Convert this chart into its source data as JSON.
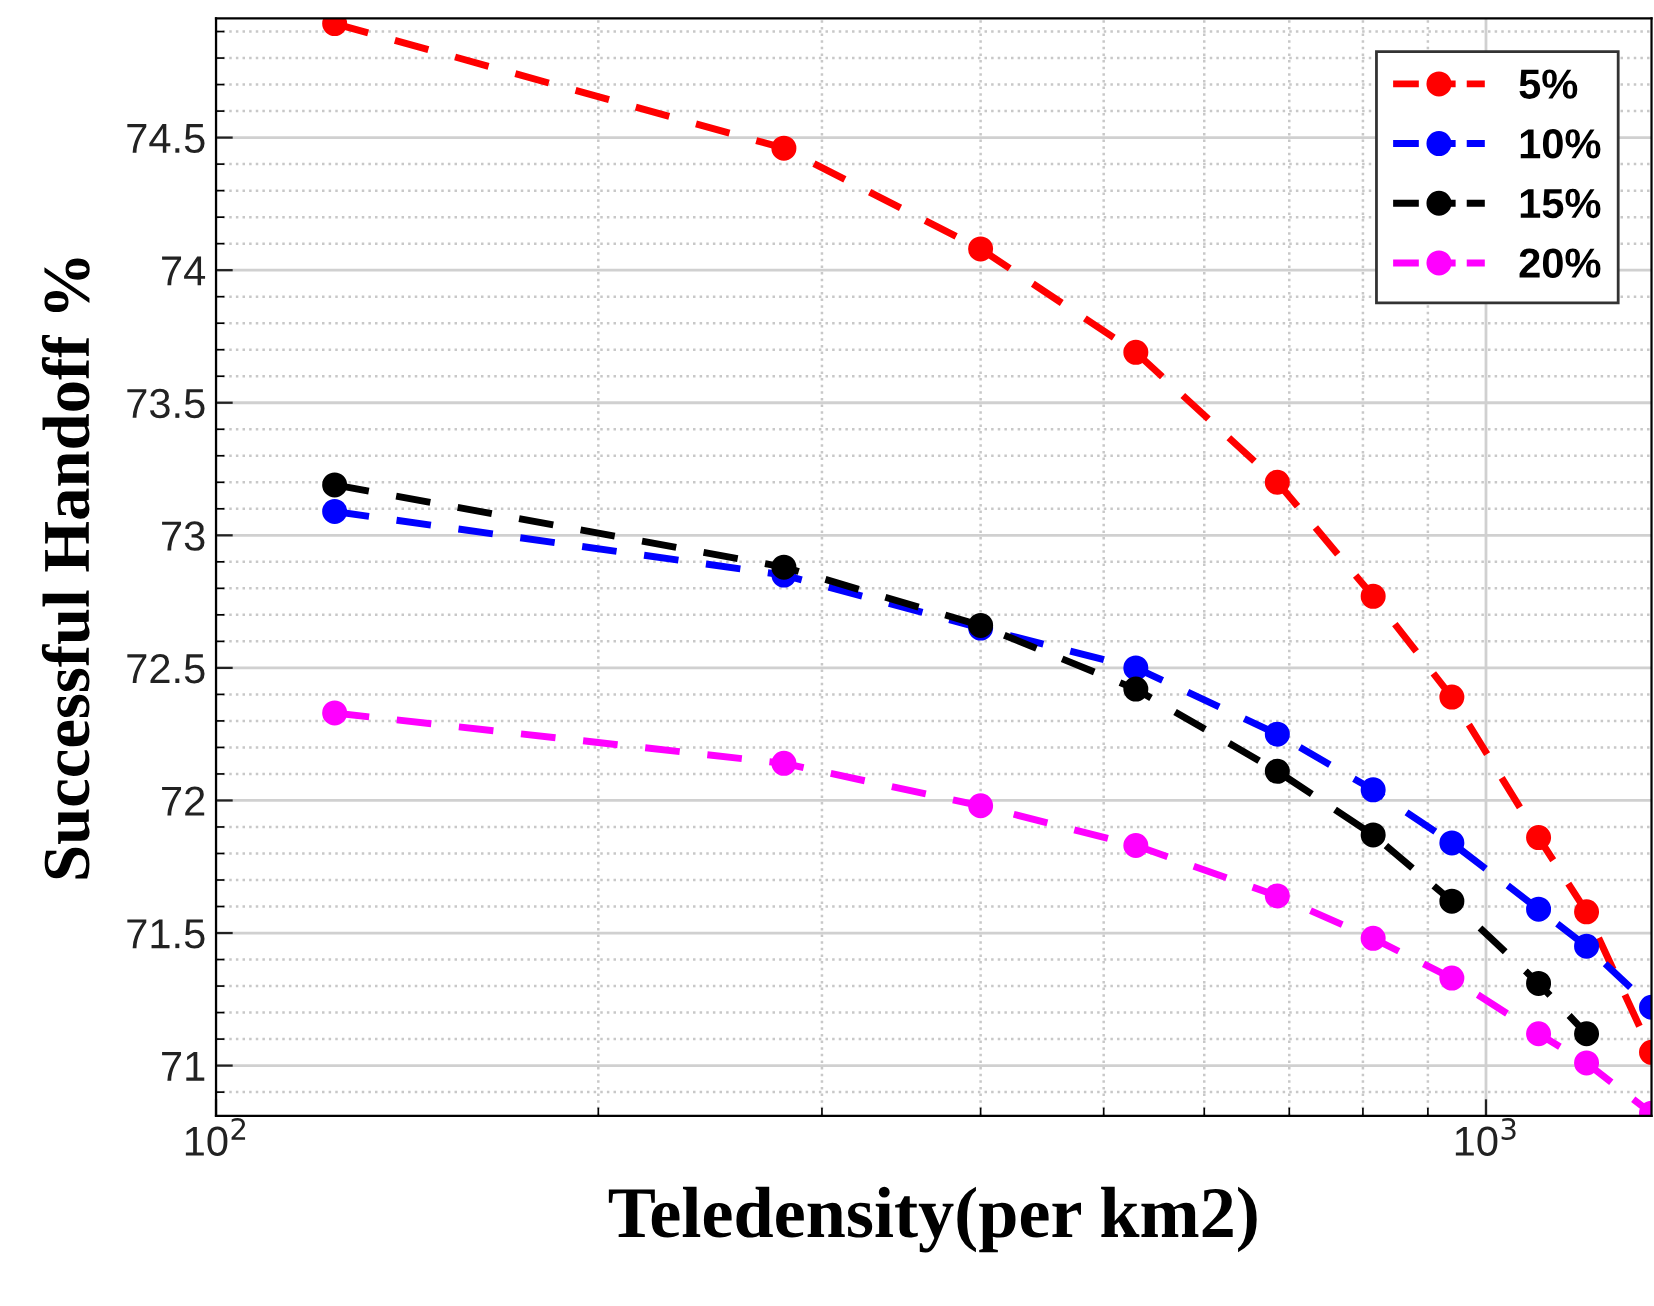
{
  "chart_data": {
    "type": "line",
    "xlabel": "Teledensity(per km2)",
    "ylabel": "Successful Handoff %",
    "x": [
      124,
      280,
      400,
      530,
      685,
      815,
      940,
      1100,
      1200,
      1350
    ],
    "series": [
      {
        "name": "5%",
        "color": "#ff0000",
        "values": [
          74.93,
          74.46,
          74.08,
          73.69,
          73.2,
          72.77,
          72.39,
          71.86,
          71.58,
          71.05
        ]
      },
      {
        "name": "10%",
        "color": "#0000ff",
        "values": [
          73.09,
          72.85,
          72.65,
          72.5,
          72.25,
          72.04,
          71.84,
          71.59,
          71.45,
          71.22
        ]
      },
      {
        "name": "15%",
        "color": "#000000",
        "values": [
          73.19,
          72.88,
          72.66,
          72.42,
          72.11,
          71.87,
          71.62,
          71.31,
          71.12,
          null
        ]
      },
      {
        "name": "20%",
        "color": "#ff00ff",
        "values": [
          72.33,
          72.14,
          71.98,
          71.83,
          71.64,
          71.48,
          71.33,
          71.12,
          71.01,
          70.82
        ]
      }
    ],
    "log": "x",
    "xlim": [
      100,
      1350
    ],
    "ylim": [
      70.81,
      74.95
    ],
    "xticks": [
      {
        "value": 100,
        "label": "10$^{2}$"
      },
      {
        "value": 1000,
        "label": "10$^{3}$"
      }
    ],
    "yticks": [
      71,
      71.5,
      72,
      72.5,
      73,
      73.5,
      74,
      74.5
    ],
    "grid": true,
    "legend": "top right",
    "marker": "circle",
    "line_style": "dashed"
  }
}
